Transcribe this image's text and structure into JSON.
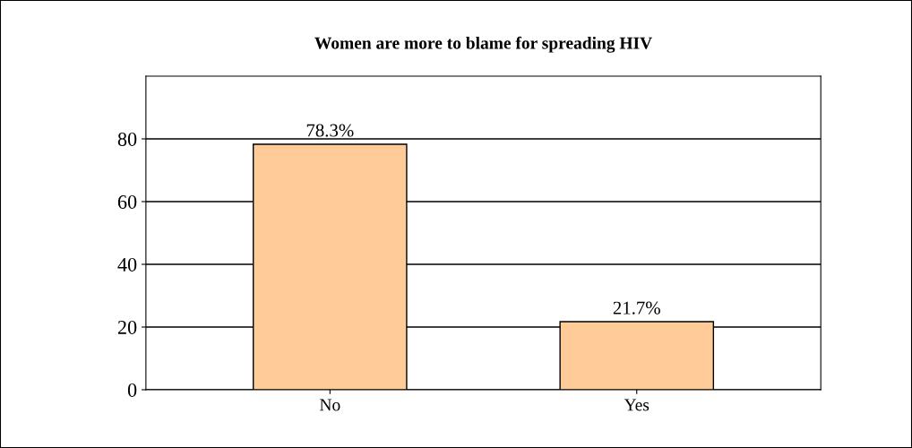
{
  "chart_data": {
    "type": "bar",
    "title": "Women are more to blame for spreading HIV",
    "categories": [
      "No",
      "Yes"
    ],
    "values": [
      78.3,
      21.7
    ],
    "value_labels": [
      "78.3%",
      "21.7%"
    ],
    "color": "#ffcc99",
    "ylim": [
      0,
      100
    ],
    "yticks": [
      0,
      20,
      40,
      60,
      80
    ],
    "grid": "y"
  }
}
